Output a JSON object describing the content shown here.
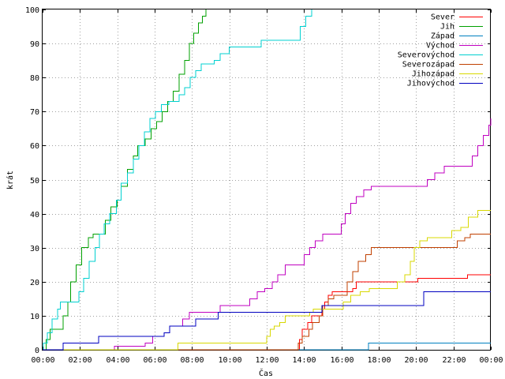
{
  "chart_data": {
    "type": "line",
    "xlabel": "Čas",
    "ylabel": "krát",
    "ylim": [
      0,
      100
    ],
    "xlim": [
      "00:00",
      "24:00"
    ],
    "grid": true,
    "legend_position": "top-right",
    "y_ticks": [
      "0",
      "10",
      "20",
      "30",
      "40",
      "50",
      "60",
      "70",
      "80",
      "90",
      "100"
    ],
    "x_ticks": [
      "00:00",
      "02:00",
      "04:00",
      "06:00",
      "08:00",
      "10:00",
      "12:00",
      "14:00",
      "16:00",
      "18:00",
      "20:00",
      "22:00",
      "00:00"
    ],
    "series": [
      {
        "name": "Sever",
        "color": "#ff0000",
        "points": [
          [
            0,
            0
          ],
          [
            13.7,
            0
          ],
          [
            13.75,
            3
          ],
          [
            13.9,
            6
          ],
          [
            14.2,
            8
          ],
          [
            14.4,
            10
          ],
          [
            14.95,
            12
          ],
          [
            15.1,
            14
          ],
          [
            15.3,
            16
          ],
          [
            15.5,
            17
          ],
          [
            16.3,
            17
          ],
          [
            16.6,
            18
          ],
          [
            16.8,
            20
          ],
          [
            19.8,
            20
          ],
          [
            20.1,
            21
          ],
          [
            22.7,
            21
          ],
          [
            22.75,
            22
          ],
          [
            24,
            22
          ]
        ]
      },
      {
        "name": "Jih",
        "color": "#00a000",
        "points": [
          [
            0,
            0
          ],
          [
            0.1,
            0
          ],
          [
            0.2,
            3
          ],
          [
            0.4,
            6
          ],
          [
            0.8,
            6
          ],
          [
            1.1,
            10
          ],
          [
            1.35,
            14
          ],
          [
            1.5,
            20
          ],
          [
            1.8,
            25
          ],
          [
            2.1,
            30
          ],
          [
            2.45,
            33
          ],
          [
            2.7,
            34
          ],
          [
            3.0,
            34
          ],
          [
            3.35,
            38
          ],
          [
            3.65,
            42
          ],
          [
            4.0,
            44
          ],
          [
            4.2,
            48
          ],
          [
            4.55,
            53
          ],
          [
            4.85,
            57
          ],
          [
            5.1,
            60
          ],
          [
            5.5,
            62
          ],
          [
            5.8,
            65
          ],
          [
            6.1,
            67
          ],
          [
            6.4,
            70
          ],
          [
            6.7,
            73
          ],
          [
            7.0,
            76
          ],
          [
            7.3,
            81
          ],
          [
            7.6,
            85
          ],
          [
            7.85,
            90
          ],
          [
            8.1,
            93
          ],
          [
            8.35,
            96
          ],
          [
            8.55,
            98
          ],
          [
            8.75,
            100
          ]
        ]
      },
      {
        "name": "Západ",
        "color": "#0080c0",
        "points": [
          [
            0,
            0
          ],
          [
            17.4,
            0
          ],
          [
            17.45,
            2
          ],
          [
            24,
            2
          ]
        ]
      },
      {
        "name": "Východ",
        "color": "#c000c0",
        "points": [
          [
            0,
            0
          ],
          [
            3.8,
            0
          ],
          [
            3.85,
            1
          ],
          [
            5.4,
            1
          ],
          [
            5.5,
            2
          ],
          [
            5.9,
            4
          ],
          [
            6.5,
            5
          ],
          [
            6.8,
            7
          ],
          [
            7.5,
            9
          ],
          [
            7.85,
            11
          ],
          [
            9.3,
            11
          ],
          [
            9.5,
            13
          ],
          [
            10.8,
            13
          ],
          [
            11.1,
            15
          ],
          [
            11.5,
            17
          ],
          [
            11.9,
            18
          ],
          [
            12.3,
            20
          ],
          [
            12.6,
            22
          ],
          [
            13.0,
            25
          ],
          [
            13.8,
            25
          ],
          [
            14.0,
            28
          ],
          [
            14.3,
            30
          ],
          [
            14.6,
            32
          ],
          [
            15.0,
            34
          ],
          [
            15.8,
            34
          ],
          [
            16.0,
            37
          ],
          [
            16.2,
            40
          ],
          [
            16.5,
            43
          ],
          [
            16.8,
            45
          ],
          [
            17.2,
            47
          ],
          [
            17.6,
            48
          ],
          [
            20.3,
            48
          ],
          [
            20.6,
            50
          ],
          [
            21.0,
            52
          ],
          [
            21.5,
            54
          ],
          [
            22.8,
            54
          ],
          [
            23.0,
            57
          ],
          [
            23.3,
            60
          ],
          [
            23.6,
            63
          ],
          [
            23.9,
            66
          ],
          [
            24,
            68
          ]
        ]
      },
      {
        "name": "Severovýchod",
        "color": "#00d0d0",
        "points": [
          [
            0,
            0
          ],
          [
            0.05,
            2
          ],
          [
            0.25,
            5
          ],
          [
            0.5,
            9
          ],
          [
            0.8,
            12
          ],
          [
            0.95,
            14
          ],
          [
            1.7,
            14
          ],
          [
            1.95,
            17
          ],
          [
            2.2,
            21
          ],
          [
            2.5,
            26
          ],
          [
            2.8,
            30
          ],
          [
            3.05,
            34
          ],
          [
            3.3,
            37
          ],
          [
            3.6,
            40
          ],
          [
            3.95,
            44
          ],
          [
            4.2,
            49
          ],
          [
            4.55,
            52
          ],
          [
            4.85,
            56
          ],
          [
            5.15,
            60
          ],
          [
            5.45,
            64
          ],
          [
            5.75,
            68
          ],
          [
            6.05,
            70
          ],
          [
            6.35,
            72
          ],
          [
            6.75,
            73
          ],
          [
            7.3,
            75
          ],
          [
            7.6,
            77
          ],
          [
            7.9,
            80
          ],
          [
            8.2,
            82
          ],
          [
            8.5,
            84
          ],
          [
            9.2,
            85
          ],
          [
            9.5,
            87
          ],
          [
            10.0,
            89
          ],
          [
            11.5,
            89
          ],
          [
            11.7,
            91
          ],
          [
            13.5,
            91
          ],
          [
            13.8,
            95
          ],
          [
            14.1,
            98
          ],
          [
            14.4,
            100
          ]
        ]
      },
      {
        "name": "Severozápad",
        "color": "#c04000",
        "points": [
          [
            0,
            0
          ],
          [
            13.65,
            0
          ],
          [
            13.7,
            2
          ],
          [
            13.9,
            4
          ],
          [
            14.25,
            6
          ],
          [
            14.45,
            8
          ],
          [
            14.8,
            10
          ],
          [
            15.0,
            13
          ],
          [
            15.3,
            15
          ],
          [
            15.6,
            16
          ],
          [
            16.0,
            16
          ],
          [
            16.3,
            20
          ],
          [
            16.6,
            23
          ],
          [
            16.9,
            26
          ],
          [
            17.3,
            28
          ],
          [
            17.6,
            30
          ],
          [
            21.9,
            30
          ],
          [
            22.2,
            32
          ],
          [
            22.6,
            33
          ],
          [
            22.9,
            34
          ],
          [
            24,
            34
          ]
        ]
      },
      {
        "name": "Jihozápad",
        "color": "#d8d800",
        "points": [
          [
            0,
            0
          ],
          [
            7.2,
            0
          ],
          [
            7.25,
            2
          ],
          [
            11.85,
            2
          ],
          [
            12.0,
            4
          ],
          [
            12.2,
            6
          ],
          [
            12.4,
            7
          ],
          [
            12.7,
            8
          ],
          [
            13.0,
            10
          ],
          [
            14.0,
            10
          ],
          [
            14.3,
            11
          ],
          [
            14.5,
            12
          ],
          [
            15.8,
            12
          ],
          [
            16.1,
            14
          ],
          [
            16.5,
            16
          ],
          [
            17.0,
            17
          ],
          [
            17.5,
            18
          ],
          [
            18.6,
            18
          ],
          [
            19.0,
            20
          ],
          [
            19.4,
            22
          ],
          [
            19.7,
            26
          ],
          [
            19.9,
            30
          ],
          [
            20.2,
            32
          ],
          [
            20.6,
            33
          ],
          [
            21.5,
            33
          ],
          [
            21.9,
            35
          ],
          [
            22.4,
            36
          ],
          [
            22.8,
            39
          ],
          [
            23.3,
            41
          ],
          [
            24,
            41
          ]
        ]
      },
      {
        "name": "Jihovýchod",
        "color": "#0000c0",
        "points": [
          [
            0,
            0
          ],
          [
            1.0,
            0
          ],
          [
            1.1,
            2
          ],
          [
            2.95,
            2
          ],
          [
            3.0,
            4
          ],
          [
            6.2,
            4
          ],
          [
            6.5,
            5
          ],
          [
            6.8,
            7
          ],
          [
            7.95,
            7
          ],
          [
            8.2,
            9
          ],
          [
            9.35,
            9
          ],
          [
            9.4,
            11
          ],
          [
            14.7,
            11
          ],
          [
            14.95,
            13
          ],
          [
            20.2,
            13
          ],
          [
            20.4,
            17
          ],
          [
            24,
            17
          ]
        ]
      }
    ]
  }
}
